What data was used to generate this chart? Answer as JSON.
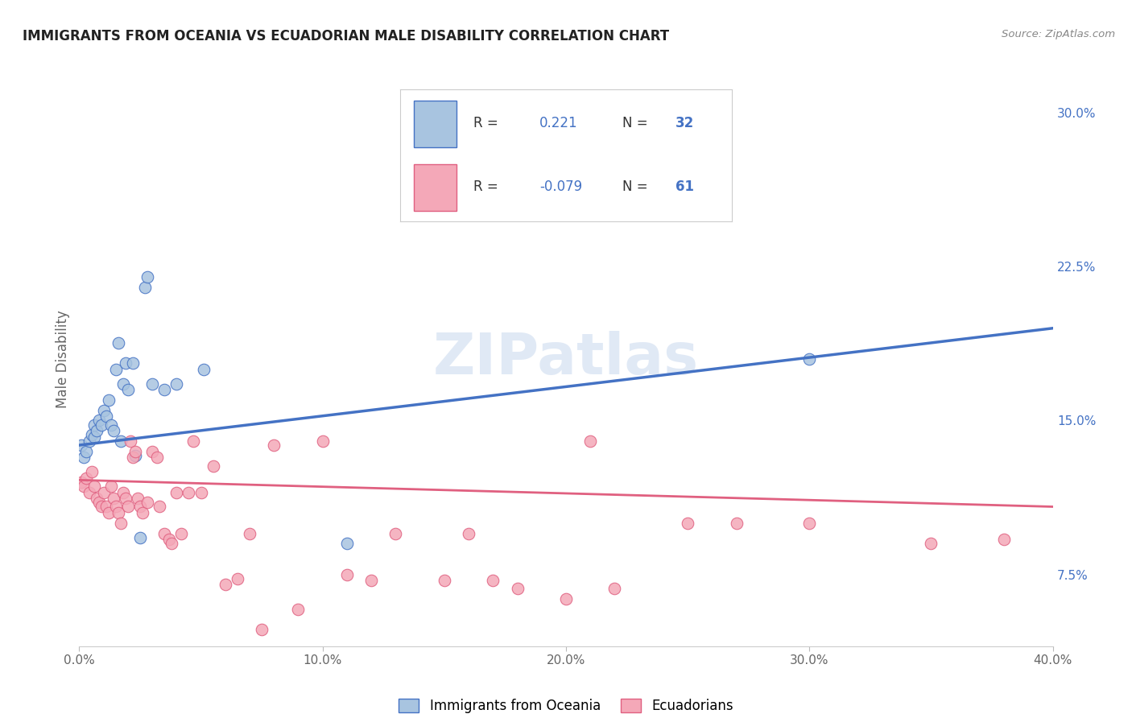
{
  "title": "IMMIGRANTS FROM OCEANIA VS ECUADORIAN MALE DISABILITY CORRELATION CHART",
  "source": "Source: ZipAtlas.com",
  "ylabel": "Male Disability",
  "right_yticks": [
    "7.5%",
    "15.0%",
    "22.5%",
    "30.0%"
  ],
  "right_ytick_vals": [
    0.075,
    0.15,
    0.225,
    0.3
  ],
  "legend_label1": "Immigrants from Oceania",
  "legend_label2": "Ecuadorians",
  "color_blue": "#a8c4e0",
  "color_pink": "#f4a8b8",
  "line_blue": "#4472c4",
  "line_pink": "#e06080",
  "scatter_blue": [
    [
      0.001,
      0.138
    ],
    [
      0.002,
      0.132
    ],
    [
      0.003,
      0.135
    ],
    [
      0.004,
      0.14
    ],
    [
      0.005,
      0.143
    ],
    [
      0.006,
      0.148
    ],
    [
      0.006,
      0.142
    ],
    [
      0.007,
      0.145
    ],
    [
      0.008,
      0.15
    ],
    [
      0.009,
      0.148
    ],
    [
      0.01,
      0.155
    ],
    [
      0.011,
      0.152
    ],
    [
      0.012,
      0.16
    ],
    [
      0.013,
      0.148
    ],
    [
      0.014,
      0.145
    ],
    [
      0.015,
      0.175
    ],
    [
      0.016,
      0.188
    ],
    [
      0.017,
      0.14
    ],
    [
      0.018,
      0.168
    ],
    [
      0.019,
      0.178
    ],
    [
      0.02,
      0.165
    ],
    [
      0.022,
      0.178
    ],
    [
      0.023,
      0.133
    ],
    [
      0.025,
      0.093
    ],
    [
      0.027,
      0.215
    ],
    [
      0.028,
      0.22
    ],
    [
      0.03,
      0.168
    ],
    [
      0.035,
      0.165
    ],
    [
      0.04,
      0.168
    ],
    [
      0.051,
      0.175
    ],
    [
      0.11,
      0.09
    ],
    [
      0.3,
      0.18
    ]
  ],
  "scatter_pink": [
    [
      0.001,
      0.12
    ],
    [
      0.002,
      0.118
    ],
    [
      0.003,
      0.122
    ],
    [
      0.004,
      0.115
    ],
    [
      0.005,
      0.125
    ],
    [
      0.006,
      0.118
    ],
    [
      0.007,
      0.112
    ],
    [
      0.008,
      0.11
    ],
    [
      0.009,
      0.108
    ],
    [
      0.01,
      0.115
    ],
    [
      0.011,
      0.108
    ],
    [
      0.012,
      0.105
    ],
    [
      0.013,
      0.118
    ],
    [
      0.014,
      0.112
    ],
    [
      0.015,
      0.108
    ],
    [
      0.016,
      0.105
    ],
    [
      0.017,
      0.1
    ],
    [
      0.018,
      0.115
    ],
    [
      0.019,
      0.112
    ],
    [
      0.02,
      0.108
    ],
    [
      0.021,
      0.14
    ],
    [
      0.022,
      0.132
    ],
    [
      0.023,
      0.135
    ],
    [
      0.024,
      0.112
    ],
    [
      0.025,
      0.108
    ],
    [
      0.026,
      0.105
    ],
    [
      0.028,
      0.11
    ],
    [
      0.03,
      0.135
    ],
    [
      0.032,
      0.132
    ],
    [
      0.033,
      0.108
    ],
    [
      0.035,
      0.095
    ],
    [
      0.037,
      0.092
    ],
    [
      0.038,
      0.09
    ],
    [
      0.04,
      0.115
    ],
    [
      0.042,
      0.095
    ],
    [
      0.045,
      0.115
    ],
    [
      0.047,
      0.14
    ],
    [
      0.05,
      0.115
    ],
    [
      0.055,
      0.128
    ],
    [
      0.06,
      0.07
    ],
    [
      0.065,
      0.073
    ],
    [
      0.07,
      0.095
    ],
    [
      0.075,
      0.048
    ],
    [
      0.08,
      0.138
    ],
    [
      0.09,
      0.058
    ],
    [
      0.1,
      0.14
    ],
    [
      0.11,
      0.075
    ],
    [
      0.12,
      0.072
    ],
    [
      0.13,
      0.095
    ],
    [
      0.15,
      0.072
    ],
    [
      0.16,
      0.095
    ],
    [
      0.17,
      0.072
    ],
    [
      0.18,
      0.068
    ],
    [
      0.2,
      0.063
    ],
    [
      0.21,
      0.14
    ],
    [
      0.22,
      0.068
    ],
    [
      0.25,
      0.1
    ],
    [
      0.27,
      0.1
    ],
    [
      0.3,
      0.1
    ],
    [
      0.35,
      0.09
    ],
    [
      0.38,
      0.092
    ]
  ],
  "xlim": [
    0.0,
    0.4
  ],
  "ylim": [
    0.04,
    0.32
  ],
  "blue_line_x": [
    0.0,
    0.4
  ],
  "blue_line_y": [
    0.138,
    0.195
  ],
  "pink_line_x": [
    0.0,
    0.4
  ],
  "pink_line_y": [
    0.121,
    0.108
  ],
  "background_color": "#ffffff",
  "grid_color": "#e0e0e0",
  "xtick_vals": [
    0.0,
    0.1,
    0.2,
    0.3,
    0.4
  ],
  "xtick_labels": [
    "0.0%",
    "10.0%",
    "20.0%",
    "30.0%",
    "40.0%"
  ]
}
